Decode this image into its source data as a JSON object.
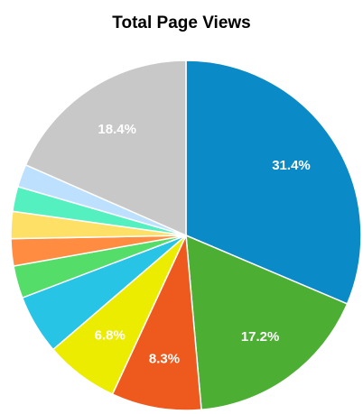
{
  "chart_data": {
    "type": "pie",
    "title": "Total Page Views",
    "values": [
      31.4,
      17.2,
      8.3,
      6.8,
      5.5,
      3.0,
      2.5,
      2.5,
      2.3,
      2.1,
      18.4
    ],
    "value_labels": [
      "31.4%",
      "17.2%",
      "8.3%",
      "6.8%",
      null,
      null,
      null,
      null,
      null,
      null,
      "18.4%"
    ],
    "colors": [
      "#0a8ac6",
      "#4cae33",
      "#ee5a1e",
      "#ecec00",
      "#27c4e6",
      "#55dd6a",
      "#ff8c40",
      "#ffe066",
      "#55f0c0",
      "#bde0ff",
      "#c8c8c8"
    ]
  }
}
